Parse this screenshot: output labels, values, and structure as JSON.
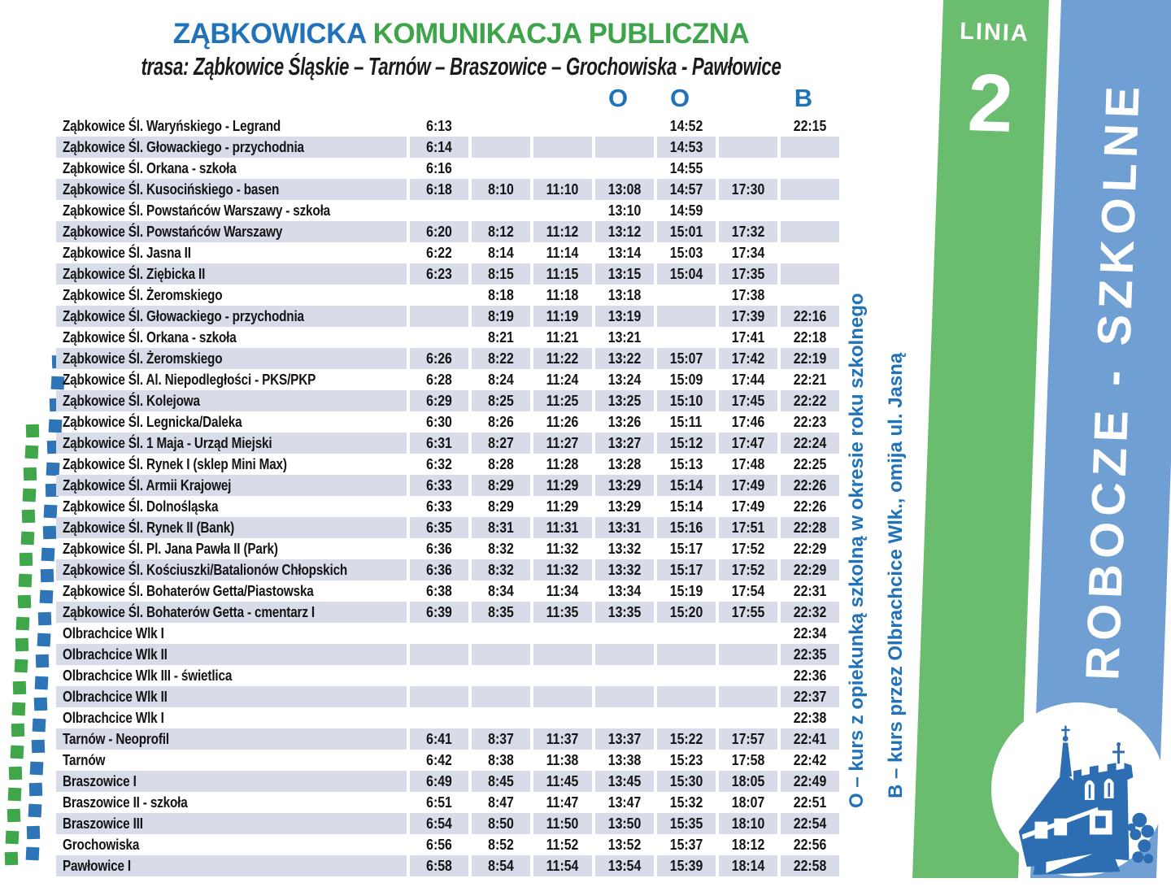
{
  "header": {
    "title_blue": "ZĄBKOWICKA",
    "title_green": "KOMUNIKACJA PUBLICZNA",
    "route": "trasa: Ząbkowice Śląskie – Tarnów – Braszowice – Grochowiska - Pawłowice",
    "column_markers": [
      {
        "label": "O",
        "column": 4
      },
      {
        "label": "O",
        "column": 5
      },
      {
        "label": "B",
        "column": 7
      }
    ]
  },
  "timetable": {
    "rows": [
      {
        "stop": "Ząbkowice Śl. Waryńskiego - Legrand",
        "times": [
          "6:13",
          "",
          "",
          "",
          "14:52",
          "",
          "22:15"
        ]
      },
      {
        "stop": "Ząbkowice Śl. Głowackiego - przychodnia",
        "times": [
          "6:14",
          "",
          "",
          "",
          "14:53",
          "",
          ""
        ]
      },
      {
        "stop": "Ząbkowice Śl. Orkana - szkoła",
        "times": [
          "6:16",
          "",
          "",
          "",
          "14:55",
          "",
          ""
        ]
      },
      {
        "stop": "Ząbkowice Śl. Kusocińskiego - basen",
        "times": [
          "6:18",
          "8:10",
          "11:10",
          "13:08",
          "14:57",
          "17:30",
          ""
        ]
      },
      {
        "stop": "Ząbkowice Śl. Powstańców Warszawy - szkoła",
        "times": [
          "",
          "",
          "",
          "13:10",
          "14:59",
          "",
          ""
        ]
      },
      {
        "stop": "Ząbkowice Śl. Powstańców Warszawy",
        "times": [
          "6:20",
          "8:12",
          "11:12",
          "13:12",
          "15:01",
          "17:32",
          ""
        ]
      },
      {
        "stop": "Ząbkowice Śl. Jasna II",
        "times": [
          "6:22",
          "8:14",
          "11:14",
          "13:14",
          "15:03",
          "17:34",
          ""
        ]
      },
      {
        "stop": "Ząbkowice Śl. Ziębicka II",
        "times": [
          "6:23",
          "8:15",
          "11:15",
          "13:15",
          "15:04",
          "17:35",
          ""
        ]
      },
      {
        "stop": "Ząbkowice Śl. Żeromskiego",
        "times": [
          "",
          "8:18",
          "11:18",
          "13:18",
          "",
          "17:38",
          ""
        ]
      },
      {
        "stop": "Ząbkowice Śl. Głowackiego - przychodnia",
        "times": [
          "",
          "8:19",
          "11:19",
          "13:19",
          "",
          "17:39",
          "22:16"
        ]
      },
      {
        "stop": "Ząbkowice Śl. Orkana - szkoła",
        "times": [
          "",
          "8:21",
          "11:21",
          "13:21",
          "",
          "17:41",
          "22:18"
        ]
      },
      {
        "stop": "Ząbkowice Śl. Żeromskiego",
        "times": [
          "6:26",
          "8:22",
          "11:22",
          "13:22",
          "15:07",
          "17:42",
          "22:19"
        ]
      },
      {
        "stop": "Ząbkowice Śl. Al. Niepodległości - PKS/PKP",
        "times": [
          "6:28",
          "8:24",
          "11:24",
          "13:24",
          "15:09",
          "17:44",
          "22:21"
        ]
      },
      {
        "stop": "Ząbkowice Śl. Kolejowa",
        "times": [
          "6:29",
          "8:25",
          "11:25",
          "13:25",
          "15:10",
          "17:45",
          "22:22"
        ]
      },
      {
        "stop": "Ząbkowice Śl. Legnicka/Daleka",
        "times": [
          "6:30",
          "8:26",
          "11:26",
          "13:26",
          "15:11",
          "17:46",
          "22:23"
        ]
      },
      {
        "stop": "Ząbkowice Śl. 1 Maja - Urząd Miejski",
        "times": [
          "6:31",
          "8:27",
          "11:27",
          "13:27",
          "15:12",
          "17:47",
          "22:24"
        ]
      },
      {
        "stop": "Ząbkowice Śl. Rynek I (sklep Mini Max)",
        "times": [
          "6:32",
          "8:28",
          "11:28",
          "13:28",
          "15:13",
          "17:48",
          "22:25"
        ]
      },
      {
        "stop": "Ząbkowice Śl. Armii Krajowej",
        "times": [
          "6:33",
          "8:29",
          "11:29",
          "13:29",
          "15:14",
          "17:49",
          "22:26"
        ]
      },
      {
        "stop": "Ząbkowice Śl. Dolnośląska",
        "times": [
          "6:33",
          "8:29",
          "11:29",
          "13:29",
          "15:14",
          "17:49",
          "22:26"
        ]
      },
      {
        "stop": "Ząbkowice Śl. Rynek II (Bank)",
        "times": [
          "6:35",
          "8:31",
          "11:31",
          "13:31",
          "15:16",
          "17:51",
          "22:28"
        ]
      },
      {
        "stop": "Ząbkowice Śl. Pl. Jana Pawła II (Park)",
        "times": [
          "6:36",
          "8:32",
          "11:32",
          "13:32",
          "15:17",
          "17:52",
          "22:29"
        ]
      },
      {
        "stop": "Ząbkowice Śl. Kościuszki/Batalionów Chłopskich",
        "times": [
          "6:36",
          "8:32",
          "11:32",
          "13:32",
          "15:17",
          "17:52",
          "22:29"
        ]
      },
      {
        "stop": "Ząbkowice Śl. Bohaterów Getta/Piastowska",
        "times": [
          "6:38",
          "8:34",
          "11:34",
          "13:34",
          "15:19",
          "17:54",
          "22:31"
        ]
      },
      {
        "stop": "Ząbkowice Śl. Bohaterów Getta - cmentarz I",
        "times": [
          "6:39",
          "8:35",
          "11:35",
          "13:35",
          "15:20",
          "17:55",
          "22:32"
        ]
      },
      {
        "stop": "Olbrachcice Wlk I",
        "times": [
          "",
          "",
          "",
          "",
          "",
          "",
          "22:34"
        ]
      },
      {
        "stop": "Olbrachcice Wlk II",
        "times": [
          "",
          "",
          "",
          "",
          "",
          "",
          "22:35"
        ]
      },
      {
        "stop": "Olbrachcice  Wlk III - świetlica",
        "times": [
          "",
          "",
          "",
          "",
          "",
          "",
          "22:36"
        ]
      },
      {
        "stop": "Olbrachcice Wlk II",
        "times": [
          "",
          "",
          "",
          "",
          "",
          "",
          "22:37"
        ]
      },
      {
        "stop": "Olbrachcice Wlk I",
        "times": [
          "",
          "",
          "",
          "",
          "",
          "",
          "22:38"
        ]
      },
      {
        "stop": "Tarnów - Neoprofil",
        "times": [
          "6:41",
          "8:37",
          "11:37",
          "13:37",
          "15:22",
          "17:57",
          "22:41"
        ]
      },
      {
        "stop": "Tarnów",
        "times": [
          "6:42",
          "8:38",
          "11:38",
          "13:38",
          "15:23",
          "17:58",
          "22:42"
        ]
      },
      {
        "stop": "Braszowice I",
        "times": [
          "6:49",
          "8:45",
          "11:45",
          "13:45",
          "15:30",
          "18:05",
          "22:49"
        ]
      },
      {
        "stop": "Braszowice II - szkoła",
        "times": [
          "6:51",
          "8:47",
          "11:47",
          "13:47",
          "15:32",
          "18:07",
          "22:51"
        ]
      },
      {
        "stop": "Braszowice III",
        "times": [
          "6:54",
          "8:50",
          "11:50",
          "13:50",
          "15:35",
          "18:10",
          "22:54"
        ]
      },
      {
        "stop": "Grochowiska",
        "times": [
          "6:56",
          "8:52",
          "11:52",
          "13:52",
          "15:37",
          "18:12",
          "22:56"
        ]
      },
      {
        "stop": "Pawłowice I",
        "times": [
          "6:58",
          "8:54",
          "11:54",
          "13:54",
          "15:39",
          "18:14",
          "22:58"
        ]
      }
    ]
  },
  "legend": {
    "note_o": "O – kurs z opiekunką szkolną w okresie roku szkolnego",
    "note_b": "B – kurs przez Olbrachcice Wlk., omija ul. Jasną"
  },
  "side": {
    "line_label": "LINIA",
    "line_number": "2",
    "schedule_type": "DNI ROBOCZE - SZKOLNE"
  },
  "logo": {
    "name": "zabkowice-town-logo"
  },
  "colors": {
    "title_blue": "#2173b9",
    "title_green": "#3da449",
    "band_green": "#6abd6e",
    "band_blue": "#6f9fd3",
    "row_shade": "#d8dbe8",
    "square_blue": "#2e75b8",
    "square_green": "#3fa74a",
    "logo_blue": "#2d6db2"
  }
}
